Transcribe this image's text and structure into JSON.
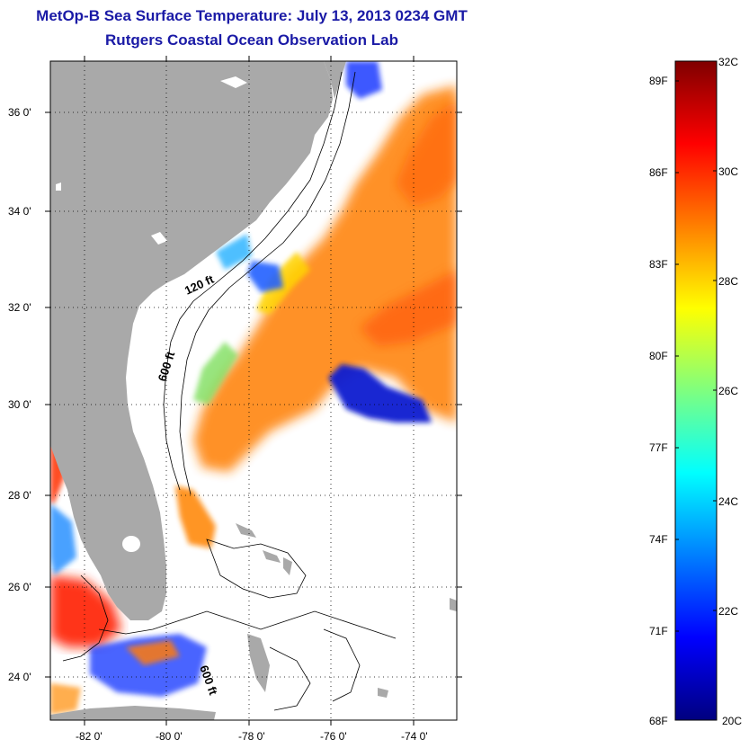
{
  "header": {
    "title": "MetOp-B Sea Surface Temperature:  July 13, 2013 0234 GMT",
    "subtitle": "Rutgers Coastal Ocean Observation Lab"
  },
  "map": {
    "lat_labels": [
      "36 0'",
      "34 0'",
      "32 0'",
      "30 0'",
      "28 0'",
      "26 0'",
      "24 0'"
    ],
    "lon_labels": [
      "-82 0'",
      "-80 0'",
      "-78 0'",
      "-76 0'",
      "-74 0'"
    ],
    "contour_labels": [
      "120 ft",
      "600 ft",
      "600 ft"
    ],
    "colors": {
      "land": "#a9a9a9",
      "no_data": "#ffffff"
    }
  },
  "colorbar": {
    "fahrenheit_labels": [
      "89F",
      "86F",
      "83F",
      "80F",
      "77F",
      "74F",
      "71F",
      "68F"
    ],
    "celsius_labels": [
      "32C",
      "30C",
      "28C",
      "26C",
      "24C",
      "22C",
      "20C"
    ],
    "range_c": [
      20,
      32
    ],
    "colormap": [
      "#00007f",
      "#0000ff",
      "#007fff",
      "#00ffff",
      "#7fff7f",
      "#ffff00",
      "#ff7f00",
      "#ff0000",
      "#7f0000"
    ]
  }
}
